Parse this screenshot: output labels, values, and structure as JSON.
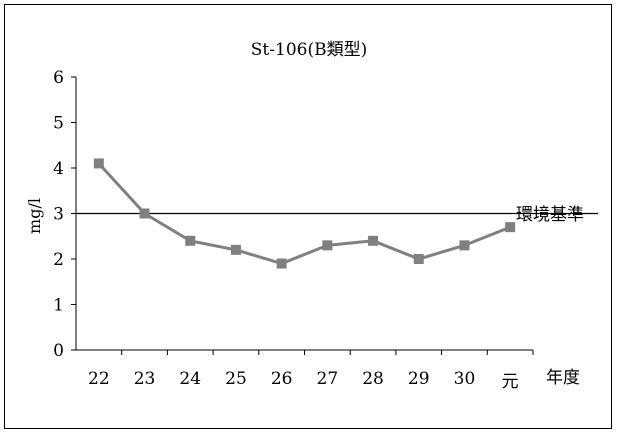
{
  "chart_data": {
    "type": "line",
    "title": "St-106(B類型)",
    "xlabel": "年度",
    "ylabel": "mg/l",
    "categories": [
      "22",
      "23",
      "24",
      "25",
      "26",
      "27",
      "28",
      "29",
      "30",
      "元"
    ],
    "series": [
      {
        "name": "",
        "values": [
          4.1,
          3.0,
          2.4,
          2.2,
          1.9,
          2.3,
          2.4,
          2.0,
          2.3,
          2.7
        ],
        "color": "#808080"
      }
    ],
    "reference_line": {
      "label": "環境基準",
      "value": 3,
      "color": "#000000"
    },
    "ylim": [
      0,
      6
    ],
    "yticks": [
      0,
      1,
      2,
      3,
      4,
      5,
      6
    ],
    "grid": false,
    "legend": "none"
  }
}
